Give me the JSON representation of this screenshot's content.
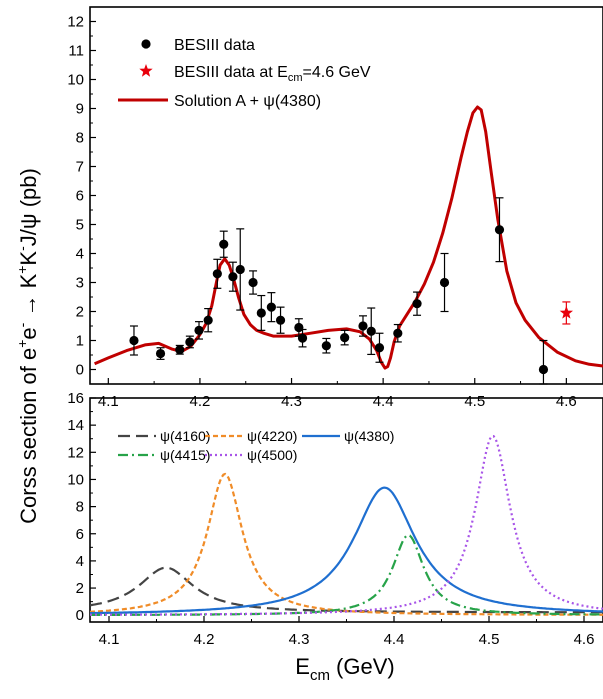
{
  "figure": {
    "y_axis_label": "Corss section of e+e- → K+K-J/ψ (pb)",
    "x_axis_label": "Ecm (GeV)"
  },
  "chart_data": [
    {
      "type": "scatter",
      "panel": "top",
      "xlim": [
        4.08,
        4.64
      ],
      "ylim": [
        -0.5,
        12.5
      ],
      "xticks": [
        "4.1",
        "4.2",
        "4.3",
        "4.4",
        "4.5",
        "4.6"
      ],
      "yticks": [
        "0",
        "1",
        "2",
        "3",
        "4",
        "5",
        "6",
        "7",
        "8",
        "9",
        "10",
        "11",
        "12"
      ],
      "legend_position": "top-left",
      "series": [
        {
          "name": "BESIII data",
          "color": "#000000",
          "marker": "circle",
          "points": [
            {
              "x": 4.128,
              "y": 1.0,
              "err": 0.5
            },
            {
              "x": 4.157,
              "y": 0.55,
              "err": 0.2
            },
            {
              "x": 4.178,
              "y": 0.68,
              "err": 0.15
            },
            {
              "x": 4.189,
              "y": 0.95,
              "err": 0.2
            },
            {
              "x": 4.199,
              "y": 1.35,
              "err": 0.3
            },
            {
              "x": 4.209,
              "y": 1.7,
              "err": 0.4
            },
            {
              "x": 4.219,
              "y": 3.3,
              "err": 0.5
            },
            {
              "x": 4.226,
              "y": 4.32,
              "err": 0.45
            },
            {
              "x": 4.236,
              "y": 3.2,
              "err": 0.5
            },
            {
              "x": 4.244,
              "y": 3.45,
              "err": 1.4
            },
            {
              "x": 4.258,
              "y": 3.0,
              "err": 0.4
            },
            {
              "x": 4.267,
              "y": 1.95,
              "err": 0.6
            },
            {
              "x": 4.278,
              "y": 2.15,
              "err": 0.5
            },
            {
              "x": 4.288,
              "y": 1.7,
              "err": 0.45
            },
            {
              "x": 4.308,
              "y": 1.45,
              "err": 0.3
            },
            {
              "x": 4.312,
              "y": 1.08,
              "err": 0.3
            },
            {
              "x": 4.338,
              "y": 0.82,
              "err": 0.25
            },
            {
              "x": 4.358,
              "y": 1.1,
              "err": 0.25
            },
            {
              "x": 4.378,
              "y": 1.5,
              "err": 0.35
            },
            {
              "x": 4.387,
              "y": 1.32,
              "err": 0.8
            },
            {
              "x": 4.396,
              "y": 0.75,
              "err": 0.5
            },
            {
              "x": 4.416,
              "y": 1.25,
              "err": 0.3
            },
            {
              "x": 4.437,
              "y": 2.27,
              "err": 0.4
            },
            {
              "x": 4.467,
              "y": 3.0,
              "err": 1.0
            },
            {
              "x": 4.527,
              "y": 4.82,
              "err": 1.1
            },
            {
              "x": 4.575,
              "y": 0.0,
              "err": 1.0
            }
          ]
        },
        {
          "name": "BESIII data at Ecm=4.6 GeV",
          "color": "#e8000b",
          "marker": "star",
          "points": [
            {
              "x": 4.6,
              "y": 1.95,
              "err": 0.38
            }
          ]
        }
      ],
      "curve": {
        "name": "Solution A + ψ(4380)",
        "color": "#c00000",
        "x": [
          4.085,
          4.1,
          4.12,
          4.14,
          4.155,
          4.17,
          4.18,
          4.19,
          4.2,
          4.207,
          4.213,
          4.218,
          4.222,
          4.227,
          4.232,
          4.237,
          4.242,
          4.248,
          4.255,
          4.262,
          4.27,
          4.28,
          4.3,
          4.32,
          4.34,
          4.36,
          4.375,
          4.385,
          4.393,
          4.398,
          4.402,
          4.405,
          4.408,
          4.412,
          4.418,
          4.425,
          4.435,
          4.445,
          4.455,
          4.465,
          4.475,
          4.485,
          4.492,
          4.498,
          4.503,
          4.507,
          4.512,
          4.518,
          4.525,
          4.535,
          4.545,
          4.555,
          4.57,
          4.59,
          4.61,
          4.625,
          4.64
        ],
        "y": [
          0.2,
          0.4,
          0.65,
          0.85,
          0.9,
          0.7,
          0.62,
          0.8,
          1.2,
          1.6,
          2.2,
          3.0,
          3.6,
          3.82,
          3.6,
          3.1,
          2.5,
          1.9,
          1.55,
          1.35,
          1.25,
          1.15,
          1.15,
          1.25,
          1.35,
          1.4,
          1.3,
          1.05,
          0.65,
          0.25,
          0.05,
          0.1,
          0.4,
          0.95,
          1.5,
          1.85,
          2.35,
          2.95,
          3.7,
          4.7,
          5.9,
          7.3,
          8.2,
          8.85,
          9.05,
          8.95,
          8.2,
          6.8,
          5.2,
          3.4,
          2.3,
          1.7,
          1.1,
          0.6,
          0.3,
          0.18,
          0.12
        ]
      }
    },
    {
      "type": "line",
      "panel": "bottom",
      "xlim": [
        4.08,
        4.62
      ],
      "ylim": [
        -0.5,
        16
      ],
      "xticks": [
        "4.1",
        "4.2",
        "4.3",
        "4.4",
        "4.5",
        "4.6"
      ],
      "yticks": [
        "0",
        "2",
        "4",
        "6",
        "8",
        "10",
        "12",
        "14",
        "16"
      ],
      "legend_position": "top",
      "series": [
        {
          "name": "ψ(4160)",
          "color": "#444444",
          "style": "dash",
          "m": 4.16,
          "g": 0.07,
          "a": 3.3,
          "base": 0.2
        },
        {
          "name": "ψ(4220)",
          "color": "#f08c28",
          "style": "short-dash",
          "m": 4.222,
          "g": 0.045,
          "a": 10.4,
          "base": 0.0
        },
        {
          "name": "ψ(4380)",
          "color": "#1f6fd0",
          "style": "solid",
          "m": 4.39,
          "g": 0.08,
          "a": 9.4,
          "base": 0.0
        },
        {
          "name": "ψ(4415)",
          "color": "#27a349",
          "style": "dash-dot",
          "m": 4.415,
          "g": 0.04,
          "a": 5.9,
          "base": 0.0
        },
        {
          "name": "ψ(4500)",
          "color": "#a855e8",
          "style": "dot",
          "m": 4.504,
          "g": 0.045,
          "a": 13.2,
          "base": 0.0
        }
      ]
    }
  ]
}
